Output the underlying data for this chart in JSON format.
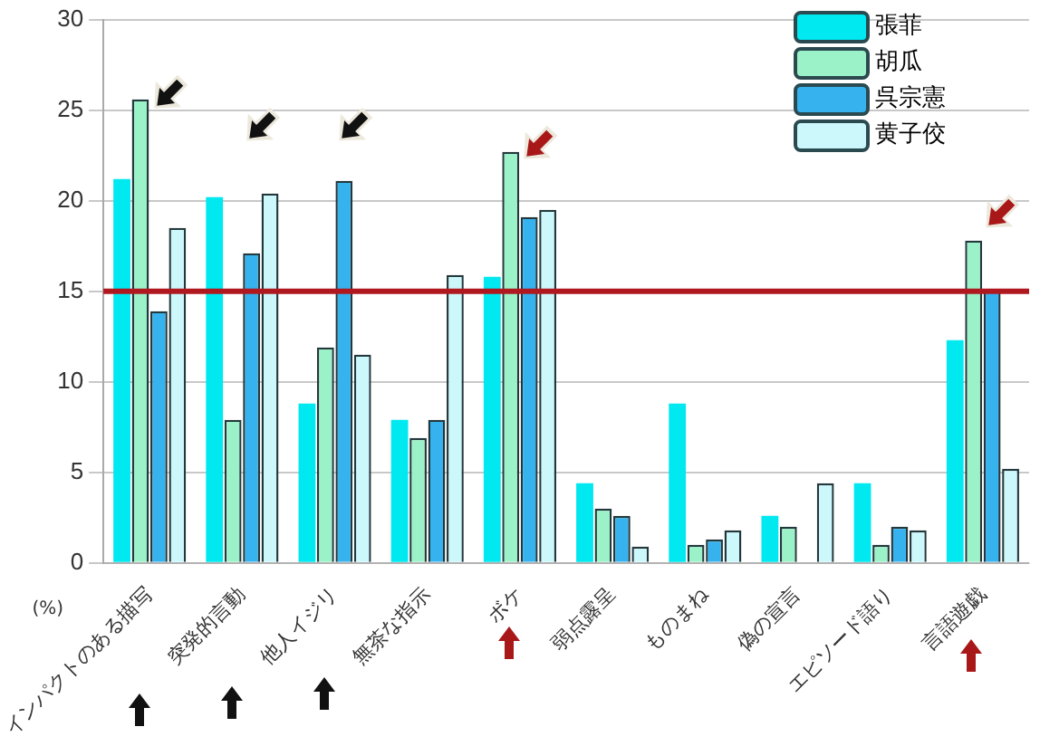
{
  "chart_data": {
    "type": "bar",
    "ylabel": "(%)",
    "categories": [
      "インパクトのある描写",
      "突発的言動",
      "他人イジリ",
      "無茶な指示",
      "ボケ",
      "弱点露呈",
      "ものまね",
      "偽の宣言",
      "エピソード語り",
      "言語遊戯"
    ],
    "series": [
      {
        "name": "張菲",
        "color": "#00e8f0",
        "values": [
          21.2,
          20.2,
          8.8,
          7.9,
          15.8,
          4.4,
          8.8,
          2.6,
          4.4,
          12.3
        ]
      },
      {
        "name": "胡瓜",
        "color": "#9cf2c8",
        "values": [
          25.6,
          7.9,
          11.9,
          6.9,
          22.7,
          3.0,
          1.0,
          2.0,
          1.0,
          17.8
        ]
      },
      {
        "name": "呉宗憲",
        "color": "#36b2ee",
        "values": [
          13.9,
          17.1,
          21.1,
          7.9,
          19.1,
          2.6,
          1.3,
          0,
          2.0,
          15.1
        ]
      },
      {
        "name": "黄子佼",
        "color": "#ccf8fc",
        "values": [
          18.5,
          20.4,
          11.5,
          15.9,
          19.5,
          0.9,
          1.8,
          4.4,
          1.8,
          5.2
        ]
      }
    ],
    "ylim": [
      0,
      30
    ],
    "yticks": [
      0,
      5,
      10,
      15,
      20,
      25,
      30
    ],
    "grid": "y",
    "legend": "top right",
    "ref_lines": [
      {
        "axis": "y",
        "value": 15,
        "color": "#b01820"
      }
    ]
  }
}
